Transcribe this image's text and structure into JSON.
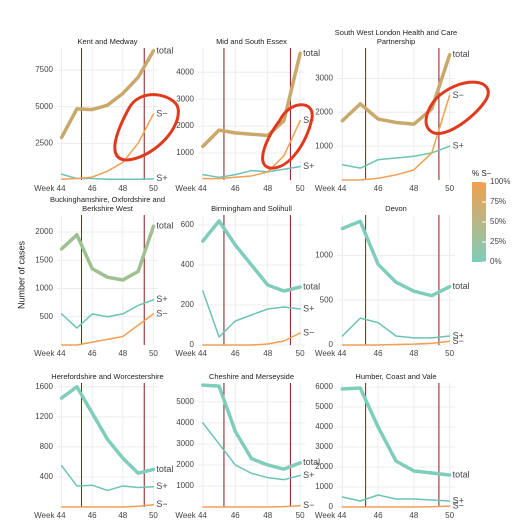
{
  "y_axis_label": "Number of cases",
  "legend": {
    "title": "% S−",
    "colors": [
      "#7fcdbb",
      "#f0a050"
    ],
    "ticks": [
      {
        "value": 0,
        "label": "0%"
      },
      {
        "value": 25,
        "label": "25%"
      },
      {
        "value": 50,
        "label": "50%"
      },
      {
        "value": 75,
        "label": "75%"
      },
      {
        "value": 100,
        "label": "100%"
      }
    ]
  },
  "chart_data": [
    {
      "type": "line",
      "title": "Kent and Medway",
      "x": [
        44,
        45,
        46,
        47,
        48,
        49,
        50
      ],
      "xlim": [
        43.7,
        50.3
      ],
      "xticks": [
        {
          "value": 44,
          "label": "Week 44"
        },
        46,
        48,
        50
      ],
      "ylim": [
        0,
        9000
      ],
      "yticks": [
        2500,
        5000,
        7500
      ],
      "grid": true,
      "vlines": [
        45.3,
        49.4
      ],
      "vline_color": "#8b1a1a",
      "series": [
        {
          "name": "total",
          "color": "#c9a86a",
          "values": [
            2900,
            4850,
            4800,
            5100,
            5900,
            7000,
            8800
          ]
        },
        {
          "name": "S+",
          "color": "#6cc3b5",
          "values": [
            400,
            100,
            100,
            50,
            50,
            50,
            80
          ]
        },
        {
          "name": "S−",
          "color": "#f0a050",
          "values": [
            50,
            100,
            200,
            600,
            1200,
            2500,
            4500
          ]
        }
      ]
    },
    {
      "type": "line",
      "title": "Mid and South Essex",
      "x": [
        44,
        45,
        46,
        47,
        48,
        49,
        50
      ],
      "xlim": [
        43.7,
        50.3
      ],
      "xticks": [
        {
          "value": 44,
          "label": "Week 44"
        },
        46,
        48,
        50
      ],
      "ylim": [
        0,
        4900
      ],
      "yticks": [
        1000,
        2000,
        3000,
        4000
      ],
      "grid": true,
      "vlines": [
        45.3,
        49.4
      ],
      "vline_color": "#8b1a1a",
      "series": [
        {
          "name": "total",
          "color": "#c9a86a",
          "values": [
            1250,
            1850,
            1750,
            1700,
            1650,
            2200,
            4700
          ]
        },
        {
          "name": "S+",
          "color": "#6cc3b5",
          "values": [
            200,
            100,
            200,
            350,
            300,
            400,
            500
          ]
        },
        {
          "name": "S−",
          "color": "#f0a050",
          "values": [
            50,
            50,
            100,
            150,
            300,
            900,
            2200
          ]
        }
      ]
    },
    {
      "type": "line",
      "title": "South West London Health and Care Partnership",
      "x": [
        44,
        45,
        46,
        47,
        48,
        49,
        50
      ],
      "xlim": [
        43.7,
        50.3
      ],
      "xticks": [
        {
          "value": 44,
          "label": "Week 44"
        },
        46,
        48,
        50
      ],
      "ylim": [
        0,
        3900
      ],
      "yticks": [
        1000,
        2000,
        3000
      ],
      "grid": true,
      "vlines": [
        45.3,
        49.4
      ],
      "vline_color": "#8b1a1a",
      "series": [
        {
          "name": "total",
          "color": "#c9a86a",
          "values": [
            1750,
            2250,
            1800,
            1700,
            1650,
            2100,
            3700
          ]
        },
        {
          "name": "S+",
          "color": "#6cc3b5",
          "values": [
            450,
            350,
            600,
            650,
            700,
            800,
            1000
          ]
        },
        {
          "name": "S−",
          "color": "#f0a050",
          "values": [
            0,
            0,
            50,
            150,
            300,
            800,
            2500
          ]
        }
      ]
    },
    {
      "type": "line",
      "title": "Buckinghamshire, Oxfordshire and Berkshire West",
      "x": [
        44,
        45,
        46,
        47,
        48,
        49,
        50
      ],
      "xlim": [
        43.7,
        50.3
      ],
      "xticks": [
        {
          "value": 44,
          "label": "Week 44"
        },
        46,
        48,
        50
      ],
      "ylim": [
        0,
        2300
      ],
      "yticks": [
        500,
        1000,
        1500,
        2000
      ],
      "grid": true,
      "vlines": [
        45.3,
        49.4
      ],
      "vline_color": "#8b1a1a",
      "series": [
        {
          "name": "total",
          "color": "#9fc090",
          "values": [
            1700,
            1950,
            1350,
            1200,
            1150,
            1300,
            2100
          ]
        },
        {
          "name": "S+",
          "color": "#6cc3b5",
          "values": [
            550,
            300,
            550,
            500,
            550,
            700,
            800
          ]
        },
        {
          "name": "S−",
          "color": "#f0a050",
          "values": [
            0,
            0,
            50,
            100,
            150,
            350,
            550
          ]
        }
      ]
    },
    {
      "type": "line",
      "title": "Birmingham and Solihull",
      "x": [
        44,
        45,
        46,
        47,
        48,
        49,
        50
      ],
      "xlim": [
        43.7,
        50.3
      ],
      "xticks": [
        {
          "value": 44,
          "label": "Week 44"
        },
        46,
        48,
        50
      ],
      "ylim": [
        0,
        650
      ],
      "yticks": [
        0,
        200,
        400,
        600
      ],
      "grid": true,
      "vlines": [
        45.3,
        49.4
      ],
      "vline_color": "#8b1a1a",
      "series": [
        {
          "name": "total",
          "color": "#7fcdbb",
          "values": [
            520,
            620,
            500,
            400,
            300,
            270,
            290
          ]
        },
        {
          "name": "S+",
          "color": "#6cc3b5",
          "values": [
            270,
            40,
            120,
            150,
            180,
            190,
            180
          ]
        },
        {
          "name": "S−",
          "color": "#f0a050",
          "values": [
            0,
            0,
            0,
            0,
            5,
            20,
            60
          ]
        }
      ]
    },
    {
      "type": "line",
      "title": "Devon",
      "x": [
        44,
        45,
        46,
        47,
        48,
        49,
        50
      ],
      "xlim": [
        43.7,
        50.3
      ],
      "xticks": [
        {
          "value": 44,
          "label": "Week 44"
        },
        46,
        48,
        50
      ],
      "ylim": [
        0,
        1450
      ],
      "yticks": [
        0,
        500,
        1000
      ],
      "grid": true,
      "vlines": [
        45.3,
        49.4
      ],
      "vline_color": "#8b1a1a",
      "series": [
        {
          "name": "total",
          "color": "#7fcdbb",
          "values": [
            1300,
            1380,
            900,
            700,
            600,
            550,
            650
          ]
        },
        {
          "name": "S+",
          "color": "#6cc3b5",
          "values": [
            100,
            300,
            250,
            100,
            80,
            80,
            100
          ]
        },
        {
          "name": "S−",
          "color": "#f0a050",
          "values": [
            0,
            0,
            0,
            5,
            10,
            20,
            40
          ]
        }
      ]
    },
    {
      "type": "line",
      "title": "Herefordshire and Worcestershire",
      "x": [
        44,
        45,
        46,
        47,
        48,
        49,
        50
      ],
      "xlim": [
        43.7,
        50.3
      ],
      "xticks": [
        {
          "value": 44,
          "label": "Week 44"
        },
        46,
        48,
        50
      ],
      "ylim": [
        0,
        1650
      ],
      "yticks": [
        400,
        800,
        1200,
        1600
      ],
      "grid": true,
      "vlines": [
        45.3,
        49.4
      ],
      "vline_color": "#8b1a1a",
      "series": [
        {
          "name": "total",
          "color": "#7fcdbb",
          "values": [
            1450,
            1600,
            1250,
            900,
            650,
            450,
            500
          ]
        },
        {
          "name": "S+",
          "color": "#6cc3b5",
          "values": [
            550,
            280,
            290,
            220,
            280,
            260,
            270
          ]
        },
        {
          "name": "S−",
          "color": "#f0a050",
          "values": [
            0,
            0,
            0,
            0,
            0,
            10,
            30
          ]
        }
      ]
    },
    {
      "type": "line",
      "title": "Cheshire and Merseyside",
      "x": [
        44,
        45,
        46,
        47,
        48,
        49,
        50
      ],
      "xlim": [
        43.7,
        50.3
      ],
      "xticks": [
        {
          "value": 44,
          "label": "Week 44"
        },
        46,
        48,
        50
      ],
      "ylim": [
        0,
        5900
      ],
      "yticks": [
        1000,
        2000,
        3000,
        4000,
        5000
      ],
      "grid": true,
      "vlines": [
        45.3,
        49.4
      ],
      "vline_color": "#8b1a1a",
      "series": [
        {
          "name": "total",
          "color": "#7fcdbb",
          "values": [
            5800,
            5750,
            3600,
            2300,
            2000,
            1800,
            2100
          ]
        },
        {
          "name": "S+",
          "color": "#6cc3b5",
          "values": [
            4000,
            3000,
            2000,
            1600,
            1400,
            1300,
            1500
          ]
        },
        {
          "name": "S−",
          "color": "#f0a050",
          "values": [
            0,
            0,
            0,
            0,
            0,
            20,
            60
          ]
        }
      ]
    },
    {
      "type": "line",
      "title": "Humber, Coast and Vale",
      "x": [
        44,
        45,
        46,
        47,
        48,
        49,
        50
      ],
      "xlim": [
        43.7,
        50.3
      ],
      "xticks": [
        {
          "value": 44,
          "label": "Week 44"
        },
        46,
        48,
        50
      ],
      "ylim": [
        0,
        6200
      ],
      "yticks": [
        0,
        1000,
        2000,
        3000,
        4000,
        5000,
        6000
      ],
      "grid": true,
      "vlines": [
        45.3,
        49.4
      ],
      "vline_color": "#8b1a1a",
      "series": [
        {
          "name": "total",
          "color": "#7fcdbb",
          "values": [
            5900,
            5950,
            4000,
            2300,
            1800,
            1700,
            1600
          ]
        },
        {
          "name": "S+",
          "color": "#6cc3b5",
          "values": [
            500,
            300,
            600,
            400,
            400,
            350,
            300
          ]
        },
        {
          "name": "S−",
          "color": "#f0a050",
          "values": [
            0,
            0,
            0,
            0,
            0,
            10,
            50
          ]
        }
      ]
    }
  ]
}
